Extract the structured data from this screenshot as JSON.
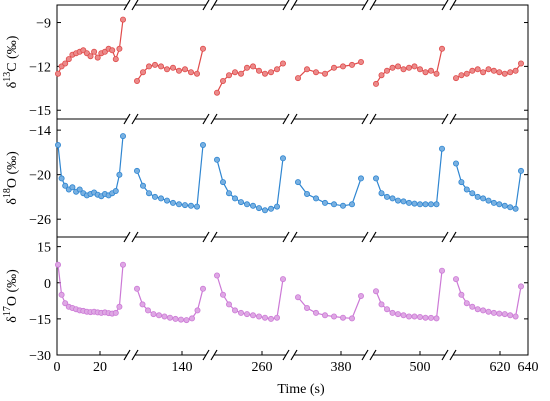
{
  "chart_data": {
    "type": "scatter",
    "x_label": "Time (s)",
    "x_ticks": [
      "0",
      "20",
      "140",
      "260",
      "380",
      "500",
      "620",
      "640"
    ],
    "x_axis_breaks": 6,
    "panels": [
      {
        "id": "d13C",
        "y_label_parts": [
          "δ",
          "13",
          "C (‰)"
        ],
        "y_ticks": [
          -9,
          -12,
          -15
        ],
        "ylim": [
          -15.6,
          -7.8
        ],
        "color": "#e04b4b",
        "segments": [
          [
            [
              6,
              -12.5
            ],
            [
              7,
              -12.0
            ],
            [
              8,
              -11.8
            ],
            [
              9,
              -11.5
            ],
            [
              10,
              -11.2
            ],
            [
              11,
              -11.1
            ],
            [
              12,
              -11.0
            ],
            [
              13,
              -10.9
            ],
            [
              14,
              -11.1
            ],
            [
              15,
              -11.3
            ],
            [
              16,
              -11.0
            ],
            [
              17,
              -11.4
            ],
            [
              18,
              -11.1
            ],
            [
              19,
              -11.0
            ],
            [
              20,
              -10.8
            ],
            [
              21,
              -10.9
            ],
            [
              22,
              -11.5
            ],
            [
              23,
              -10.8
            ],
            [
              24,
              -8.8
            ]
          ],
          [
            [
              1,
              -13.0
            ],
            [
              2,
              -12.4
            ],
            [
              3,
              -12.0
            ],
            [
              4,
              -11.9
            ],
            [
              5,
              -12.0
            ],
            [
              6,
              -12.2
            ],
            [
              7,
              -12.1
            ],
            [
              8,
              -12.3
            ],
            [
              9,
              -12.2
            ],
            [
              10,
              -12.4
            ],
            [
              11,
              -12.5
            ],
            [
              12,
              -10.8
            ]
          ],
          [
            [
              1,
              -13.8
            ],
            [
              2,
              -13.0
            ],
            [
              3,
              -12.6
            ],
            [
              4,
              -12.4
            ],
            [
              5,
              -12.5
            ],
            [
              6,
              -12.1
            ],
            [
              7,
              -12.0
            ],
            [
              8,
              -12.3
            ],
            [
              9,
              -12.5
            ],
            [
              10,
              -12.4
            ],
            [
              11,
              -12.2
            ],
            [
              12,
              -11.8
            ]
          ],
          [
            [
              3,
              -12.8
            ],
            [
              4,
              -12.2
            ],
            [
              5,
              -12.4
            ],
            [
              6,
              -12.5
            ],
            [
              7,
              -12.1
            ],
            [
              8,
              -12.0
            ],
            [
              9,
              -11.9
            ],
            [
              10,
              -11.7
            ]
          ],
          [
            [
              2,
              -13.2
            ],
            [
              3,
              -12.6
            ],
            [
              4,
              -12.3
            ],
            [
              5,
              -12.1
            ],
            [
              6,
              -12.0
            ],
            [
              7,
              -12.2
            ],
            [
              8,
              -12.1
            ],
            [
              9,
              -12.0
            ],
            [
              10,
              -12.2
            ],
            [
              11,
              -12.4
            ],
            [
              12,
              -12.3
            ],
            [
              13,
              -12.5
            ],
            [
              14,
              -10.8
            ]
          ],
          [
            [
              2,
              -12.8
            ],
            [
              3,
              -12.6
            ],
            [
              4,
              -12.5
            ],
            [
              5,
              -12.3
            ],
            [
              6,
              -12.2
            ],
            [
              7,
              -12.4
            ],
            [
              8,
              -12.2
            ],
            [
              9,
              -12.3
            ],
            [
              10,
              -12.4
            ],
            [
              11,
              -12.5
            ],
            [
              12,
              -12.4
            ],
            [
              13,
              -12.3
            ],
            [
              14,
              -11.8
            ]
          ]
        ]
      },
      {
        "id": "d18O",
        "y_label_parts": [
          "δ",
          "18",
          "O (‰)"
        ],
        "y_ticks": [
          -14,
          -20,
          -26
        ],
        "ylim": [
          -28.4,
          -12.5
        ],
        "color": "#2f86d1",
        "segments": [
          [
            [
              6,
              -16.0
            ],
            [
              7,
              -20.5
            ],
            [
              8,
              -21.5
            ],
            [
              9,
              -22.0
            ],
            [
              10,
              -21.7
            ],
            [
              11,
              -22.3
            ],
            [
              12,
              -22.0
            ],
            [
              13,
              -22.5
            ],
            [
              14,
              -22.8
            ],
            [
              15,
              -22.6
            ],
            [
              16,
              -22.4
            ],
            [
              17,
              -22.7
            ],
            [
              18,
              -22.9
            ],
            [
              19,
              -22.6
            ],
            [
              20,
              -22.8
            ],
            [
              21,
              -22.5
            ],
            [
              22,
              -22.2
            ],
            [
              23,
              -20.0
            ],
            [
              24,
              -14.8
            ]
          ],
          [
            [
              1,
              -19.5
            ],
            [
              2,
              -21.5
            ],
            [
              3,
              -22.5
            ],
            [
              4,
              -23.0
            ],
            [
              5,
              -23.2
            ],
            [
              6,
              -23.5
            ],
            [
              7,
              -23.8
            ],
            [
              8,
              -24.0
            ],
            [
              9,
              -24.1
            ],
            [
              10,
              -24.2
            ],
            [
              11,
              -24.3
            ],
            [
              12,
              -16.0
            ]
          ],
          [
            [
              1,
              -18.0
            ],
            [
              2,
              -21.0
            ],
            [
              3,
              -22.5
            ],
            [
              4,
              -23.2
            ],
            [
              5,
              -23.7
            ],
            [
              6,
              -24.0
            ],
            [
              7,
              -24.2
            ],
            [
              8,
              -24.5
            ],
            [
              9,
              -24.8
            ],
            [
              10,
              -24.6
            ],
            [
              11,
              -24.3
            ],
            [
              12,
              -17.8
            ]
          ],
          [
            [
              3,
              -21.0
            ],
            [
              4,
              -22.6
            ],
            [
              5,
              -23.2
            ],
            [
              6,
              -23.8
            ],
            [
              7,
              -24.0
            ],
            [
              8,
              -24.2
            ],
            [
              9,
              -24.0
            ],
            [
              10,
              -20.5
            ]
          ],
          [
            [
              2,
              -20.5
            ],
            [
              3,
              -22.5
            ],
            [
              4,
              -23.0
            ],
            [
              5,
              -23.2
            ],
            [
              6,
              -23.5
            ],
            [
              7,
              -23.6
            ],
            [
              8,
              -23.8
            ],
            [
              9,
              -23.9
            ],
            [
              10,
              -24.0
            ],
            [
              11,
              -24.0
            ],
            [
              12,
              -24.0
            ],
            [
              13,
              -24.0
            ],
            [
              14,
              -16.5
            ]
          ],
          [
            [
              2,
              -18.5
            ],
            [
              3,
              -21.0
            ],
            [
              4,
              -22.0
            ],
            [
              5,
              -22.5
            ],
            [
              6,
              -23.0
            ],
            [
              7,
              -23.2
            ],
            [
              8,
              -23.5
            ],
            [
              9,
              -23.8
            ],
            [
              10,
              -24.0
            ],
            [
              11,
              -24.2
            ],
            [
              12,
              -24.4
            ],
            [
              13,
              -24.6
            ],
            [
              14,
              -19.5
            ]
          ]
        ]
      },
      {
        "id": "d17O",
        "y_label_parts": [
          "δ",
          "17",
          "O (‰)"
        ],
        "y_ticks": [
          15,
          0,
          -15,
          -30
        ],
        "ylim": [
          -30,
          19
        ],
        "color": "#cc79d6",
        "segments": [
          [
            [
              6,
              7.5
            ],
            [
              7,
              -5.0
            ],
            [
              8,
              -8.5
            ],
            [
              9,
              -10.0
            ],
            [
              10,
              -10.5
            ],
            [
              11,
              -11.0
            ],
            [
              12,
              -11.5
            ],
            [
              13,
              -11.7
            ],
            [
              14,
              -12.0
            ],
            [
              15,
              -12.2
            ],
            [
              16,
              -12.0
            ],
            [
              17,
              -12.3
            ],
            [
              18,
              -12.5
            ],
            [
              19,
              -12.3
            ],
            [
              20,
              -12.6
            ],
            [
              21,
              -12.8
            ],
            [
              22,
              -12.5
            ],
            [
              23,
              -10.0
            ],
            [
              24,
              7.5
            ]
          ],
          [
            [
              1,
              -2.5
            ],
            [
              2,
              -9.0
            ],
            [
              3,
              -11.5
            ],
            [
              4,
              -13.0
            ],
            [
              5,
              -13.5
            ],
            [
              6,
              -14.0
            ],
            [
              7,
              -14.5
            ],
            [
              8,
              -15.0
            ],
            [
              9,
              -15.3
            ],
            [
              10,
              -15.5
            ],
            [
              11,
              -14.8
            ],
            [
              12,
              -11.5
            ],
            [
              13,
              -2.5
            ]
          ],
          [
            [
              1,
              3.0
            ],
            [
              2,
              -5.0
            ],
            [
              3,
              -9.0
            ],
            [
              4,
              -11.5
            ],
            [
              5,
              -12.5
            ],
            [
              6,
              -13.0
            ],
            [
              7,
              -13.5
            ],
            [
              8,
              -14.0
            ],
            [
              9,
              -14.5
            ],
            [
              10,
              -15.0
            ],
            [
              11,
              -14.5
            ],
            [
              12,
              1.5
            ]
          ],
          [
            [
              3,
              -6.0
            ],
            [
              4,
              -10.5
            ],
            [
              5,
              -12.5
            ],
            [
              6,
              -13.5
            ],
            [
              7,
              -14.0
            ],
            [
              8,
              -14.5
            ],
            [
              9,
              -14.8
            ],
            [
              10,
              -5.5
            ]
          ],
          [
            [
              2,
              -3.5
            ],
            [
              3,
              -9.0
            ],
            [
              4,
              -11.0
            ],
            [
              5,
              -12.5
            ],
            [
              6,
              -13.0
            ],
            [
              7,
              -13.5
            ],
            [
              8,
              -14.0
            ],
            [
              9,
              -14.0
            ],
            [
              10,
              -14.2
            ],
            [
              11,
              -14.5
            ],
            [
              12,
              -14.6
            ],
            [
              13,
              -14.8
            ],
            [
              14,
              5.0
            ]
          ],
          [
            [
              2,
              1.5
            ],
            [
              3,
              -5.0
            ],
            [
              4,
              -8.5
            ],
            [
              5,
              -10.0
            ],
            [
              6,
              -11.0
            ],
            [
              7,
              -11.5
            ],
            [
              8,
              -12.0
            ],
            [
              9,
              -12.5
            ],
            [
              10,
              -12.8
            ],
            [
              11,
              -13.0
            ],
            [
              12,
              -13.5
            ],
            [
              13,
              -14.0
            ],
            [
              14,
              -1.5
            ]
          ]
        ]
      }
    ]
  }
}
